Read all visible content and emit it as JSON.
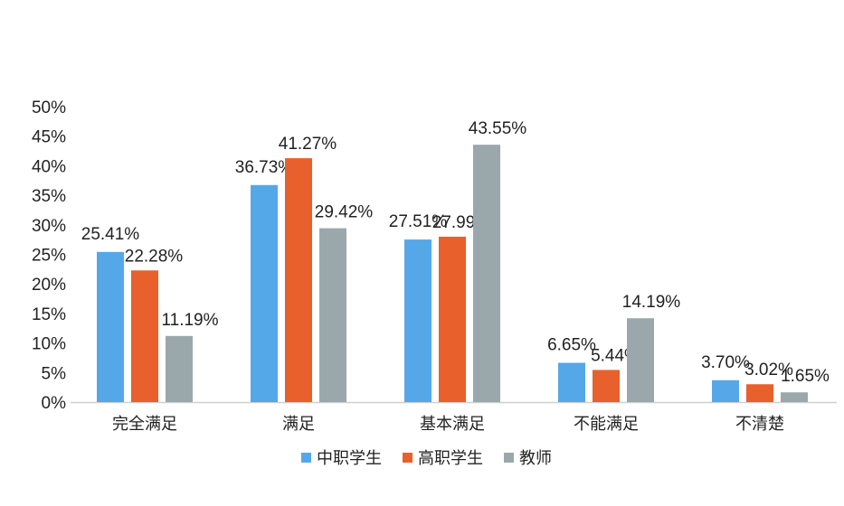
{
  "chart_data": {
    "type": "bar",
    "title": "",
    "xlabel": "",
    "ylabel": "",
    "ylim": [
      0,
      50
    ],
    "yticks": [
      "0%",
      "5%",
      "10%",
      "15%",
      "20%",
      "25%",
      "30%",
      "35%",
      "40%",
      "45%",
      "50%"
    ],
    "grid": false,
    "legend_position": "bottom",
    "categories": [
      "完全满足",
      "满足",
      "基本满足",
      "不能满足",
      "不清楚"
    ],
    "series": [
      {
        "name": "中职学生",
        "color": "#55a8e8",
        "values": [
          25.41,
          36.73,
          27.51,
          6.65,
          3.7
        ],
        "labels": [
          "25.41%",
          "36.73%",
          "27.51%",
          "6.65%",
          "3.70%"
        ]
      },
      {
        "name": "高职学生",
        "color": "#e8602c",
        "values": [
          22.28,
          41.27,
          27.99,
          5.44,
          3.02
        ],
        "labels": [
          "22.28%",
          "41.27%",
          "27.99%",
          "5.44%",
          "3.02%"
        ]
      },
      {
        "name": "教师",
        "color": "#9aa8ab",
        "values": [
          11.19,
          29.42,
          43.55,
          14.19,
          1.65
        ],
        "labels": [
          "11.19%",
          "29.42%",
          "43.55%",
          "14.19%",
          "1.65%"
        ]
      }
    ]
  }
}
